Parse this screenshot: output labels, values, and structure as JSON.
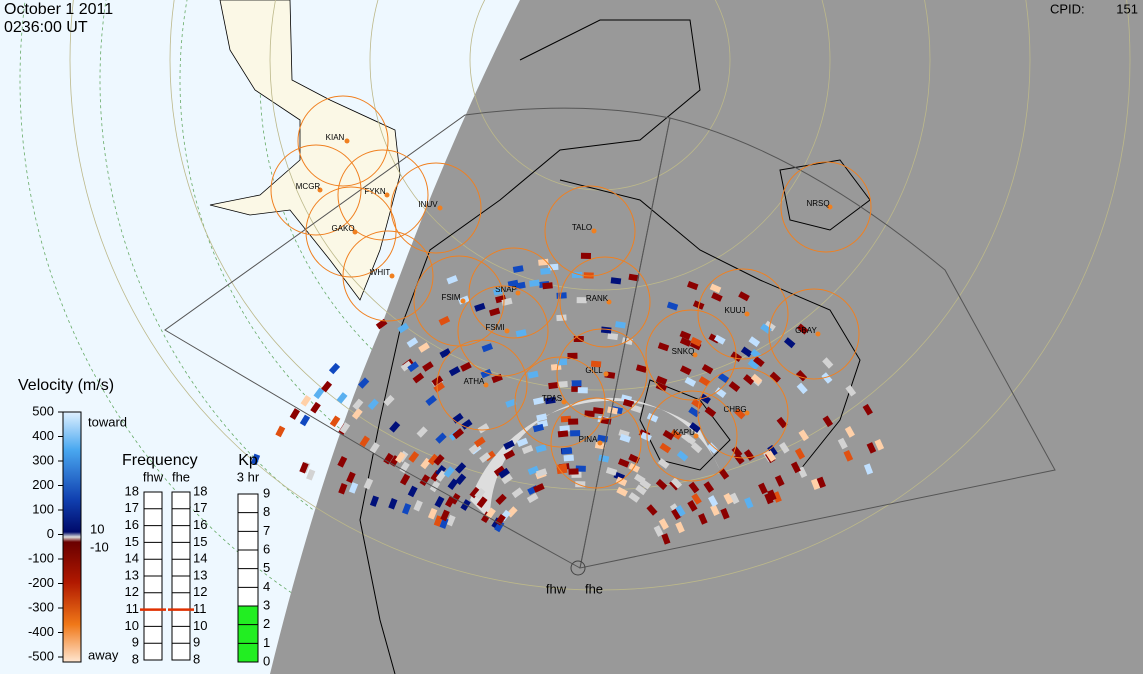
{
  "header": {
    "date": "October 1 2011",
    "time": "0236:00 UT",
    "cpid_label": "CPID:",
    "cpid": 151
  },
  "stations": [
    "KIAN",
    "MCGR",
    "FYKN",
    "GAKO",
    "WHIT",
    "INUV",
    "TALO",
    "NRSQ",
    "FSIM",
    "SNAP",
    "RANK",
    "FSMI",
    "KUUJ",
    "GBAY",
    "SNKQ",
    "ATHA",
    "GILL",
    "TPAS",
    "CHBG",
    "PINA",
    "KAPU"
  ],
  "radars": [
    "fhw",
    "fhe"
  ],
  "velocity_legend": {
    "title": "Velocity (m/s)",
    "ticks": [
      500,
      400,
      300,
      200,
      100,
      0,
      -100,
      -200,
      -300,
      -400,
      -500
    ],
    "toward": "toward",
    "away": "away",
    "upper_limit": 10,
    "lower_limit": -10
  },
  "frequency_legend": {
    "title": "Frequency",
    "columns": [
      "fhw",
      "fhe"
    ],
    "ticks": [
      18,
      17,
      16,
      15,
      14,
      13,
      12,
      11,
      10,
      9,
      8
    ],
    "values": [
      11,
      11
    ]
  },
  "kp_legend": {
    "title": "Kp",
    "subtitle": "3 hr",
    "ticks": [
      9,
      8,
      7,
      6,
      5,
      4,
      3,
      2,
      1,
      0
    ],
    "value": 3
  }
}
